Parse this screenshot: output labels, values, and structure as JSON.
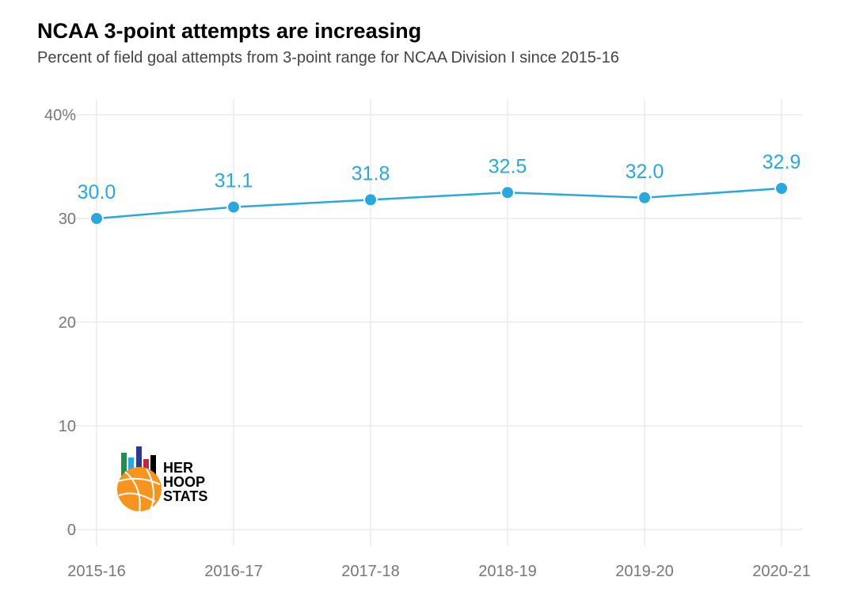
{
  "chart_data": {
    "type": "line",
    "title": "NCAA 3-point attempts are increasing",
    "subtitle": "Percent of field goal attempts from 3-point range for NCAA Division I since 2015-16",
    "xlabel": "",
    "ylabel": "",
    "categories": [
      "2015-16",
      "2016-17",
      "2017-18",
      "2018-19",
      "2019-20",
      "2020-21"
    ],
    "values": [
      30.0,
      31.1,
      31.8,
      32.5,
      32.0,
      32.9
    ],
    "data_labels": [
      "30.0",
      "31.1",
      "31.8",
      "32.5",
      "32.0",
      "32.9"
    ],
    "ylim": [
      0,
      40
    ],
    "yticks": [
      0,
      10,
      20,
      30,
      40
    ],
    "ytick_labels": [
      "0",
      "10",
      "20",
      "30",
      "40%"
    ],
    "grid": true,
    "legend": "none",
    "line_color": "#29a8e0"
  },
  "logo": {
    "text": [
      "HER",
      "HOOP",
      "STATS"
    ]
  }
}
